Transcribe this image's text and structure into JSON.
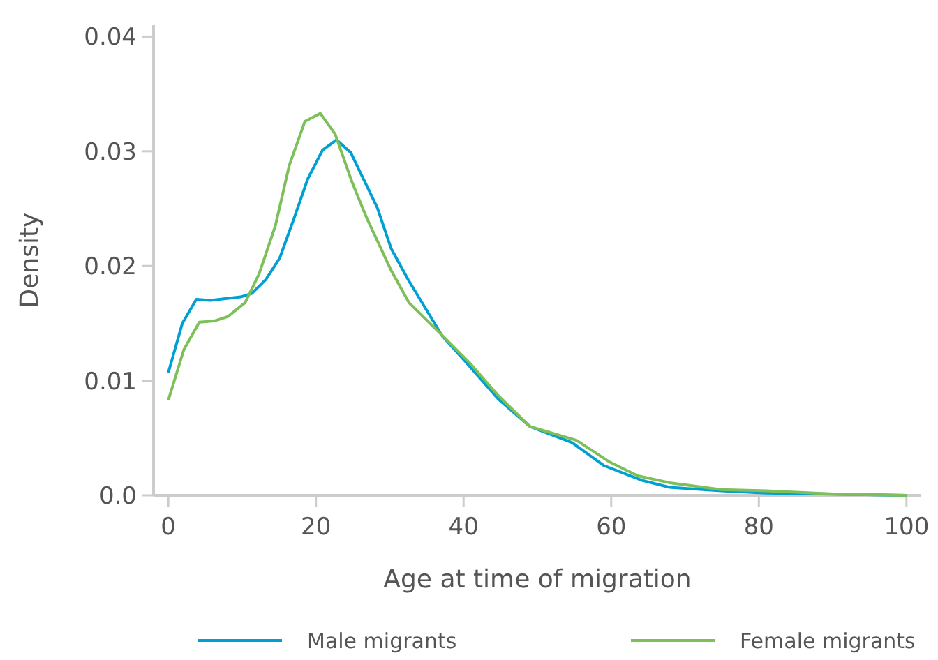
{
  "chart_data": {
    "type": "line",
    "xlabel": "Age at time of migration",
    "ylabel": "Density",
    "xlim": [
      -2,
      102
    ],
    "ylim": [
      0,
      0.041
    ],
    "xticks": [
      0,
      20,
      40,
      60,
      80,
      100
    ],
    "yticks": [
      {
        "value": 0,
        "label": "0.0"
      },
      0.01,
      0.02,
      0.03,
      0.04
    ],
    "grid": false,
    "legend": "bottom",
    "marker": "none",
    "line_style": "solid",
    "series": [
      {
        "name": "Male migrants",
        "color": "#00a0d2",
        "x": [
          0,
          1.9,
          3.8,
          5.7,
          9.8,
          11.3,
          13.2,
          15.1,
          17,
          18.9,
          20.9,
          22.8,
          24.7,
          28.3,
          30.2,
          32.5,
          37.1,
          40.2,
          44.7,
          49,
          54.7,
          59,
          64.2,
          67.9,
          74.9,
          81,
          90,
          100
        ],
        "values": [
          0.0107,
          0.015,
          0.0171,
          0.017,
          0.0173,
          0.0176,
          0.0188,
          0.0207,
          0.0241,
          0.0276,
          0.0301,
          0.031,
          0.0299,
          0.0251,
          0.0215,
          0.0188,
          0.0139,
          0.0117,
          0.0084,
          0.006,
          0.0046,
          0.0026,
          0.0013,
          0.0007,
          0.0004,
          0.0002,
          0.0001,
          0
        ]
      },
      {
        "name": "Female migrants",
        "color": "#7dc05a",
        "x": [
          0,
          2.1,
          4.2,
          6.2,
          8.1,
          10.4,
          12.3,
          14.5,
          16.4,
          18.5,
          20.6,
          22.6,
          24.9,
          26.8,
          30.2,
          32.6,
          36.4,
          40.9,
          44.7,
          49,
          55.3,
          59.8,
          63.6,
          67.9,
          74.9,
          81,
          90.6,
          100
        ],
        "values": [
          0.0083,
          0.0127,
          0.0151,
          0.0152,
          0.0156,
          0.0168,
          0.0193,
          0.0235,
          0.0288,
          0.0326,
          0.0333,
          0.0315,
          0.0273,
          0.0243,
          0.0196,
          0.0168,
          0.0144,
          0.0115,
          0.0087,
          0.006,
          0.0048,
          0.0029,
          0.0017,
          0.0011,
          0.0005,
          0.0004,
          0.0001,
          0
        ]
      }
    ]
  }
}
